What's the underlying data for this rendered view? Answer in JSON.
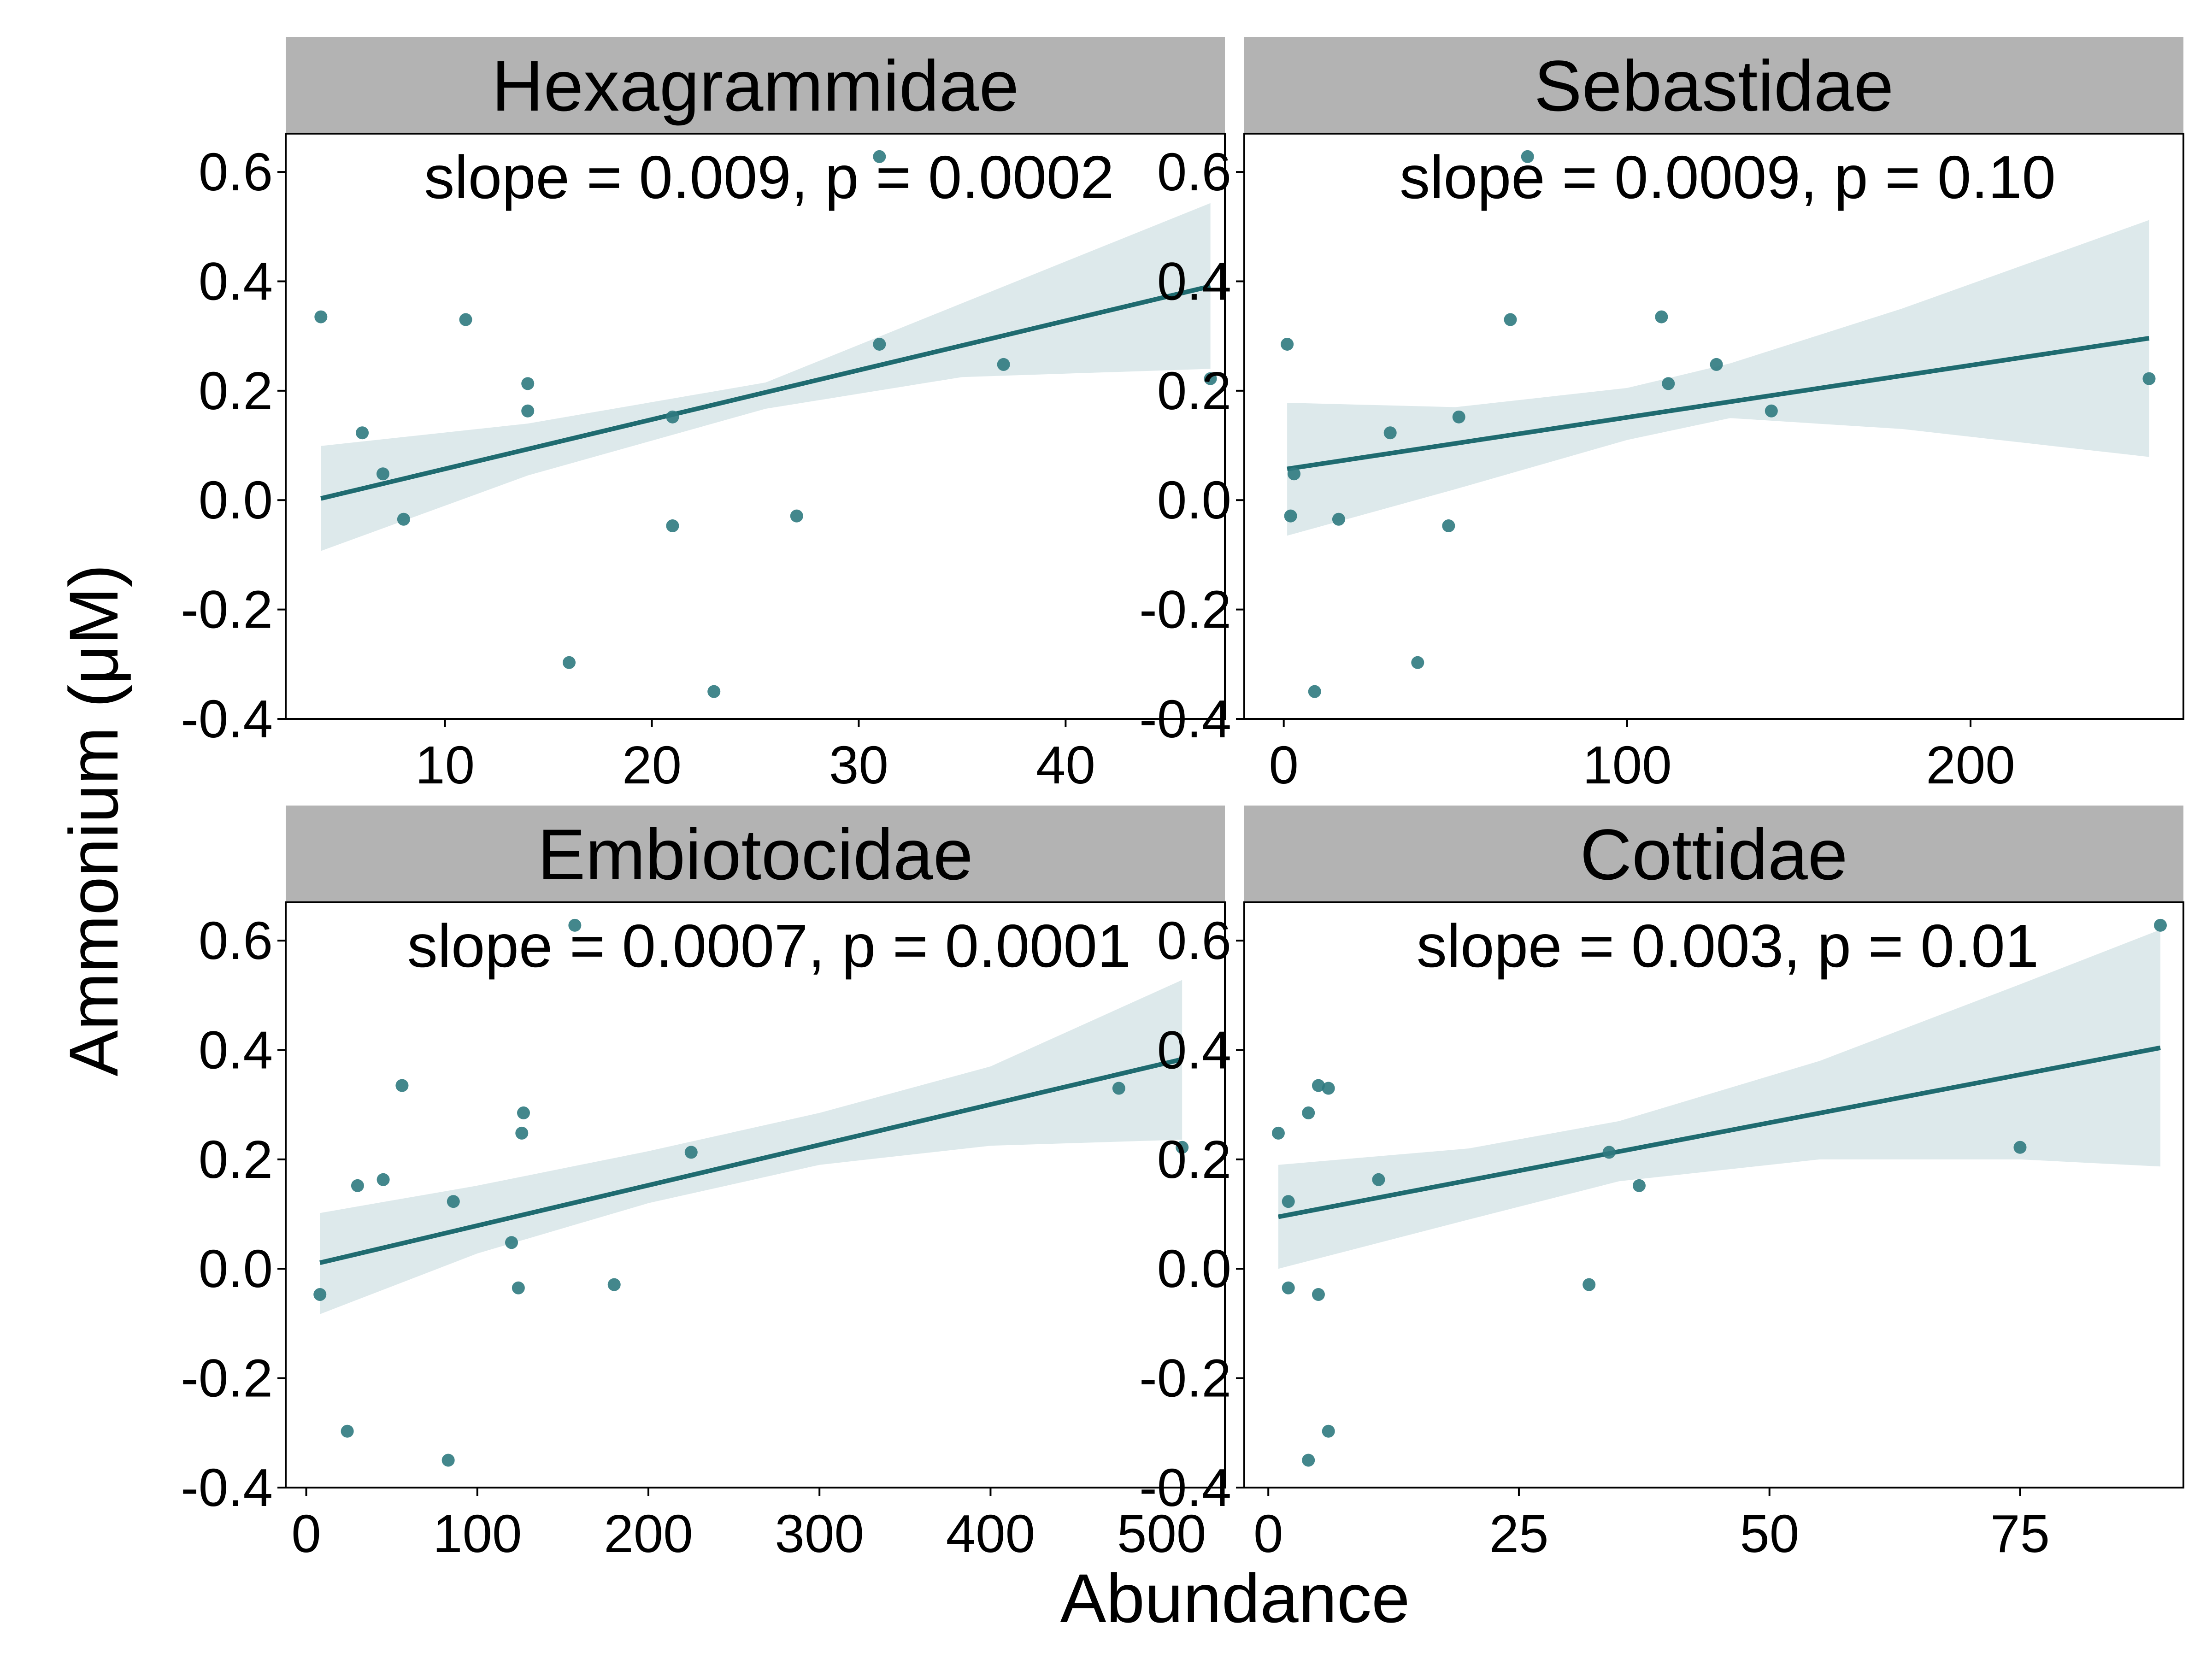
{
  "figure": {
    "xlabel": "Abundance",
    "ylabel": "Ammonium (μM)",
    "colors": {
      "points": "#2f7a80",
      "line": "#1f6b70",
      "ribbon": "#dde9eb",
      "strip": "#b3b3b3",
      "panel_border": "#000000"
    }
  },
  "chart_data": [
    {
      "type": "scatter",
      "title": "Hexagrammidae",
      "annotation": "slope = 0.009, p = 0.0002",
      "xlim": [
        2.3,
        47.7
      ],
      "ylim": [
        -0.4,
        0.67
      ],
      "xticks": [
        10,
        20,
        30,
        40
      ],
      "xtick_labels": [
        "10",
        "20",
        "30",
        "40"
      ],
      "yticks": [
        -0.4,
        -0.2,
        0.0,
        0.2,
        0.4,
        0.6
      ],
      "ytick_labels": [
        "-0.4",
        "-0.2",
        "0.0",
        "0.2",
        "0.4",
        "0.6"
      ],
      "points": {
        "x": [
          4,
          6,
          7,
          8,
          11,
          14,
          14,
          16,
          21,
          21,
          23,
          27,
          31,
          31,
          37,
          47
        ],
        "y": [
          0.335,
          0.123,
          0.048,
          -0.035,
          0.33,
          0.213,
          0.163,
          -0.297,
          0.152,
          -0.047,
          -0.35,
          -0.029,
          0.285,
          0.628,
          0.248,
          0.222
        ]
      },
      "fit": {
        "x": [
          4,
          47
        ],
        "y": [
          0.003,
          0.391
        ]
      },
      "ribbon": {
        "x": [
          4,
          14,
          25.5,
          35,
          47
        ],
        "lower": [
          -0.093,
          0.045,
          0.167,
          0.225,
          0.24
        ],
        "upper": [
          0.099,
          0.14,
          0.215,
          0.36,
          0.543
        ]
      }
    },
    {
      "type": "scatter",
      "title": "Sebastidae",
      "annotation": "slope = 0.0009, p = 0.10",
      "xlim": [
        -11.5,
        262
      ],
      "ylim": [
        -0.4,
        0.67
      ],
      "xticks": [
        0,
        100,
        200
      ],
      "xtick_labels": [
        "0",
        "100",
        "200"
      ],
      "yticks": [
        -0.4,
        -0.2,
        0.0,
        0.2,
        0.4,
        0.6
      ],
      "ytick_labels": [
        "-0.4",
        "-0.2",
        "0.0",
        "0.2",
        "0.4",
        "0.6"
      ],
      "points": {
        "x": [
          1,
          2,
          3,
          9,
          16,
          31,
          39,
          48,
          51,
          66,
          71,
          110,
          112,
          126,
          142,
          252
        ],
        "y": [
          0.285,
          -0.029,
          0.048,
          -0.35,
          -0.035,
          0.123,
          -0.297,
          -0.047,
          0.152,
          0.33,
          0.628,
          0.335,
          0.213,
          0.248,
          0.163,
          0.222
        ]
      },
      "fit": {
        "x": [
          1,
          252
        ],
        "y": [
          0.057,
          0.296
        ]
      },
      "ribbon": {
        "x": [
          1,
          50,
          100,
          130,
          180,
          252
        ],
        "lower": [
          -0.065,
          0.02,
          0.11,
          0.15,
          0.13,
          0.079
        ],
        "upper": [
          0.178,
          0.17,
          0.205,
          0.25,
          0.35,
          0.512
        ]
      }
    },
    {
      "type": "scatter",
      "title": "Embiotocidae",
      "annotation": "slope = 0.0007, p = 0.0001",
      "xlim": [
        -12,
        537
      ],
      "ylim": [
        -0.4,
        0.67
      ],
      "xticks": [
        0,
        100,
        200,
        300,
        400,
        500
      ],
      "xtick_labels": [
        "0",
        "100",
        "200",
        "300",
        "400",
        "500"
      ],
      "points": {
        "x": [
          8,
          24,
          30,
          45,
          56,
          83,
          86,
          120,
          124,
          126,
          127,
          157,
          180,
          225,
          475,
          512
        ],
        "y": [
          -0.047,
          -0.297,
          0.152,
          0.163,
          0.335,
          -0.35,
          0.123,
          0.048,
          -0.035,
          0.248,
          0.285,
          0.628,
          -0.029,
          0.213,
          0.33,
          0.222
        ],
        "x_min": 8
      },
      "yticks": [
        -0.4,
        -0.2,
        0.0,
        0.2,
        0.4,
        0.6
      ],
      "ytick_labels": [
        "-0.4",
        "-0.2",
        "0.0",
        "0.2",
        "0.4",
        "0.6"
      ],
      "fit": {
        "x": [
          8,
          512
        ],
        "y": [
          0.011,
          0.383
        ]
      },
      "ribbon": {
        "x": [
          8,
          100,
          200,
          300,
          400,
          512
        ],
        "lower": [
          -0.083,
          0.028,
          0.12,
          0.19,
          0.225,
          0.236
        ],
        "upper": [
          0.102,
          0.152,
          0.215,
          0.285,
          0.37,
          0.528
        ]
      }
    },
    {
      "type": "scatter",
      "title": "Cottidae",
      "annotation": "slope = 0.003, p = 0.01",
      "xlim": [
        -2.4,
        91.3
      ],
      "ylim": [
        -0.4,
        0.67
      ],
      "xticks": [
        0,
        25,
        50,
        75
      ],
      "xtick_labels": [
        "0",
        "25",
        "50",
        "75"
      ],
      "yticks": [
        -0.4,
        -0.2,
        0.0,
        0.2,
        0.4,
        0.6
      ],
      "ytick_labels": [
        "-0.4",
        "-0.2",
        "0.0",
        "0.2",
        "0.4",
        "0.6"
      ],
      "points": {
        "x": [
          1,
          2,
          2,
          4,
          4,
          5,
          5,
          6,
          6,
          11,
          32,
          34,
          37,
          75,
          89
        ],
        "y": [
          0.248,
          0.123,
          -0.035,
          0.285,
          -0.35,
          0.335,
          -0.047,
          0.33,
          -0.297,
          0.163,
          -0.029,
          0.213,
          0.152,
          0.222,
          0.628
        ]
      },
      "fit": {
        "x": [
          1,
          89
        ],
        "y": [
          0.095,
          0.404
        ]
      },
      "ribbon": {
        "x": [
          1,
          20,
          35,
          55,
          75,
          89
        ],
        "lower": [
          0.0,
          0.09,
          0.16,
          0.2,
          0.2,
          0.187
        ],
        "upper": [
          0.19,
          0.22,
          0.27,
          0.38,
          0.52,
          0.62
        ]
      }
    }
  ]
}
